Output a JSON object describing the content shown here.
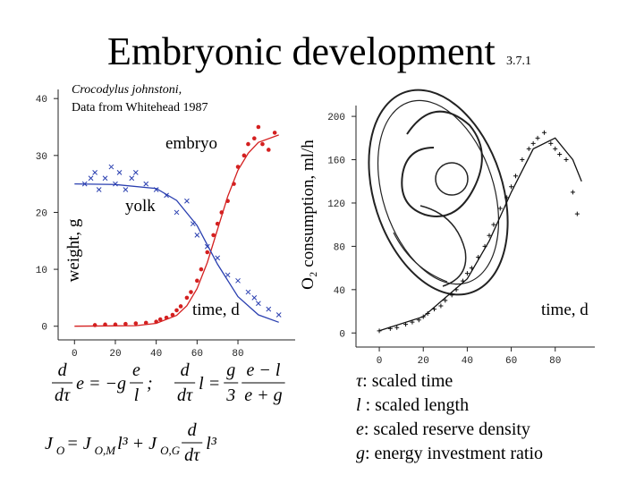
{
  "title": "Embryonic development",
  "section": "3.7.1",
  "chart_data": [
    {
      "type": "scatter",
      "subtitle": [
        "Crocodylus johnstoni,",
        "Data from Whitehead 1987"
      ],
      "y_label": "weight, g",
      "x_label": "time, d",
      "xlim": [
        -8,
        108
      ],
      "xticks": [
        0,
        20,
        40,
        60,
        80
      ],
      "ylim": [
        -2.4,
        41.6
      ],
      "yticks": [
        0,
        10,
        20,
        30,
        40
      ],
      "series": [
        {
          "name": "embryo",
          "color": "#d42020",
          "marker": "dot",
          "x": [
            10,
            15,
            20,
            25,
            30,
            35,
            40,
            42,
            45,
            48,
            50,
            52,
            55,
            57,
            60,
            62,
            65,
            68,
            70,
            72,
            75,
            78,
            80,
            83,
            85,
            88,
            90,
            92,
            95,
            98
          ],
          "values": [
            0.2,
            0.3,
            0.3,
            0.4,
            0.5,
            0.6,
            0.8,
            1.2,
            1.5,
            2,
            2.8,
            3.5,
            5,
            6,
            8,
            10,
            13,
            16,
            18,
            20,
            22,
            25,
            28,
            30,
            32,
            33,
            35,
            32,
            31,
            34
          ]
        },
        {
          "name": "yolk",
          "color": "#2a3fb0",
          "marker": "x",
          "x": [
            5,
            8,
            10,
            12,
            15,
            18,
            20,
            22,
            25,
            28,
            30,
            35,
            40,
            45,
            50,
            55,
            58,
            60,
            65,
            70,
            75,
            80,
            85,
            88,
            90,
            95,
            100
          ],
          "values": [
            25,
            26,
            27,
            24,
            26,
            28,
            25,
            27,
            24,
            26,
            27,
            25,
            24,
            23,
            20,
            22,
            18,
            16,
            14,
            12,
            9,
            8,
            6,
            5,
            4,
            3,
            2
          ]
        },
        {
          "color": "#d42020",
          "marker": "line",
          "x": [
            0,
            30,
            40,
            50,
            55,
            60,
            65,
            70,
            75,
            80,
            85,
            90,
            100
          ],
          "values": [
            0,
            0.1,
            0.5,
            1.9,
            3.6,
            6.6,
            11.2,
            17,
            22.8,
            27.4,
            30.4,
            32.3,
            33.6
          ]
        },
        {
          "color": "#2a3fb0",
          "marker": "line",
          "x": [
            0,
            20,
            40,
            50,
            60,
            70,
            80,
            90,
            100
          ],
          "values": [
            25,
            24.9,
            24.2,
            22.1,
            17.7,
            10.9,
            5.2,
            2,
            0.7
          ]
        }
      ]
    },
    {
      "type": "scatter",
      "y_label": "O₂ consumption, ml/h",
      "x_label": "time, d",
      "xlim": [
        -10.6,
        98
      ],
      "xticks": [
        0,
        20,
        40,
        60,
        80
      ],
      "ylim": [
        -13,
        210
      ],
      "yticks": [
        0,
        40,
        80,
        120,
        160,
        200
      ],
      "series": [
        {
          "color": "#111111",
          "marker": "plus",
          "x": [
            0,
            5,
            8,
            12,
            15,
            18,
            20,
            22,
            25,
            28,
            30,
            33,
            35,
            38,
            40,
            42,
            45,
            48,
            50,
            52,
            55,
            58,
            60,
            62,
            65,
            68,
            70,
            72,
            75,
            78,
            80,
            82,
            85,
            88,
            90
          ],
          "values": [
            2,
            4,
            5,
            8,
            10,
            12,
            15,
            18,
            22,
            25,
            30,
            35,
            40,
            48,
            55,
            60,
            70,
            80,
            90,
            100,
            115,
            125,
            135,
            145,
            160,
            170,
            175,
            180,
            185,
            175,
            170,
            165,
            160,
            130,
            110
          ]
        },
        {
          "color": "#111111",
          "marker": "line",
          "x": [
            0,
            20,
            40,
            50,
            60,
            70,
            80,
            88,
            92
          ],
          "values": [
            2,
            15,
            50,
            85,
            130,
            170,
            180,
            160,
            140
          ]
        }
      ]
    }
  ],
  "equations": [
    [
      [
        "d",
        "dτ"
      ],
      "e = −g",
      [
        "e",
        "l"
      ],
      ";"
    ],
    [
      [
        "d",
        "dτ"
      ],
      "l =",
      [
        "g",
        "3"
      ],
      [
        "e − l",
        "e + g"
      ]
    ],
    [
      "J",
      {
        "sub": "O"
      },
      " = J",
      {
        "sub": "O,M"
      },
      " l³ + J",
      {
        "sub": "O,G"
      },
      [
        "d",
        "dτ"
      ],
      "l³"
    ]
  ],
  "definitions": [
    {
      "symbol": "τ",
      "text": ": scaled time"
    },
    {
      "symbol": "l",
      "text": " : scaled length"
    },
    {
      "symbol": "e",
      "text": ": scaled reserve density"
    },
    {
      "symbol": "g",
      "text": ": energy investment ratio"
    }
  ]
}
